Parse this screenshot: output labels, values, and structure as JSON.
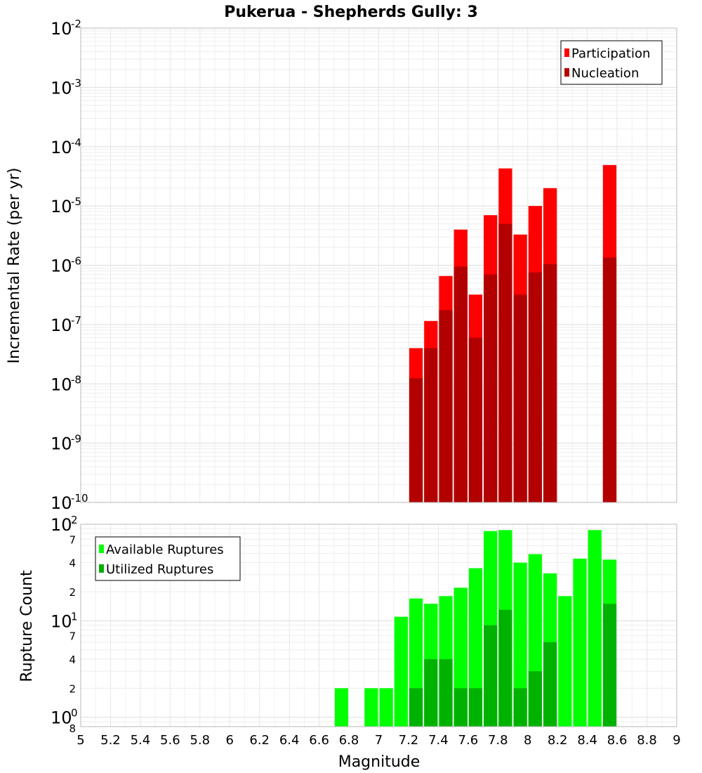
{
  "chart_data": [
    {
      "type": "bar",
      "title": "Pukerua - Shepherds Gully: 3",
      "ylabel": "Incremental Rate (per yr)",
      "yscale": "log",
      "ylim": [
        1e-10,
        0.01
      ],
      "xlim": [
        5,
        9
      ],
      "bar_width": 0.1,
      "grid": true,
      "legend_placement": "top-right",
      "series": [
        {
          "name": "Participation",
          "color": "#ff0000",
          "x": [
            7.25,
            7.35,
            7.45,
            7.55,
            7.65,
            7.75,
            7.85,
            7.95,
            8.05,
            8.15,
            8.55
          ],
          "values": [
            4e-08,
            1.15e-07,
            6.6e-07,
            4e-06,
            3.2e-07,
            7e-06,
            4.3e-05,
            3.3e-06,
            1e-05,
            2e-05,
            4.9e-05
          ]
        },
        {
          "name": "Nucleation",
          "color": "#b20000",
          "x": [
            7.25,
            7.35,
            7.45,
            7.55,
            7.65,
            7.75,
            7.85,
            7.95,
            8.05,
            8.15,
            8.55
          ],
          "values": [
            1.25e-08,
            4e-08,
            1.75e-07,
            9.5e-07,
            6e-08,
            7e-07,
            5e-06,
            3.2e-07,
            7.6e-07,
            1.05e-06,
            1.35e-06
          ]
        }
      ]
    },
    {
      "type": "bar",
      "xlabel": "Magnitude",
      "ylabel": "Rupture Count",
      "yscale": "log",
      "ylim": [
        0.8,
        100
      ],
      "xlim": [
        5,
        9
      ],
      "x_ticks": [
        "5",
        "5.2",
        "5.4",
        "5.6",
        "5.8",
        "6",
        "6.2",
        "6.4",
        "6.6",
        "6.8",
        "7",
        "7.2",
        "7.4",
        "7.6",
        "7.8",
        "8",
        "8.2",
        "8.4",
        "8.6",
        "8.8",
        "9"
      ],
      "bar_width": 0.1,
      "grid": true,
      "legend_placement": "top-left",
      "series": [
        {
          "name": "Available Ruptures",
          "color": "#00ff00",
          "x": [
            6.75,
            6.95,
            7.05,
            7.15,
            7.25,
            7.35,
            7.45,
            7.55,
            7.65,
            7.75,
            7.85,
            7.95,
            8.05,
            8.15,
            8.25,
            8.35,
            8.45,
            8.55
          ],
          "values": [
            2,
            2,
            2,
            11,
            17,
            15,
            18,
            22,
            35,
            85,
            87,
            40,
            49,
            31,
            18,
            44,
            87,
            43
          ]
        },
        {
          "name": "Utilized Ruptures",
          "color": "#00b200",
          "x": [
            7.25,
            7.35,
            7.45,
            7.55,
            7.65,
            7.75,
            7.85,
            7.95,
            8.05,
            8.15,
            8.55
          ],
          "values": [
            2,
            4,
            4,
            2,
            2,
            9,
            13,
            2,
            3,
            6,
            15
          ]
        }
      ]
    }
  ]
}
